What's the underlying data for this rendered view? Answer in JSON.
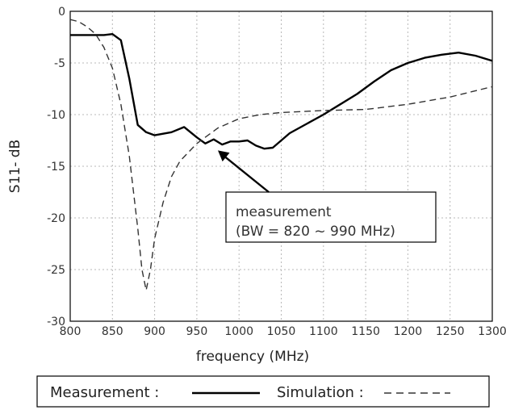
{
  "chart_data": {
    "type": "line",
    "title": "",
    "xlabel": "frequency (MHz)",
    "ylabel": "S11- dB",
    "xlim": [
      800,
      1300
    ],
    "ylim": [
      -30,
      0
    ],
    "xticks": [
      800,
      850,
      900,
      950,
      1000,
      1050,
      1100,
      1150,
      1200,
      1250,
      1300
    ],
    "yticks": [
      0,
      -5,
      -10,
      -15,
      -20,
      -25,
      -30
    ],
    "grid": true,
    "legend": {
      "placement": "bottom",
      "entries": [
        {
          "label": "Measurement :",
          "style": "solid"
        },
        {
          "label": "Simulation :",
          "style": "dashed"
        }
      ]
    },
    "annotation": {
      "line1": "measurement",
      "line2": "(BW = 820 ~ 990 MHz)",
      "arrow_target": [
        975,
        -13
      ]
    },
    "series": [
      {
        "name": "Measurement",
        "style": "solid",
        "color": "#000000",
        "x": [
          800,
          820,
          840,
          850,
          860,
          870,
          880,
          890,
          900,
          920,
          935,
          950,
          960,
          970,
          980,
          990,
          1000,
          1010,
          1020,
          1030,
          1040,
          1060,
          1080,
          1100,
          1120,
          1140,
          1160,
          1180,
          1200,
          1220,
          1240,
          1260,
          1280,
          1300
        ],
        "values": [
          -2.3,
          -2.3,
          -2.3,
          -2.2,
          -2.8,
          -6.5,
          -11.0,
          -11.7,
          -12.0,
          -11.7,
          -11.2,
          -12.2,
          -12.8,
          -12.4,
          -12.9,
          -12.6,
          -12.6,
          -12.5,
          -13.0,
          -13.3,
          -13.2,
          -11.8,
          -10.9,
          -10.0,
          -9.0,
          -8.0,
          -6.8,
          -5.7,
          -5.0,
          -4.5,
          -4.2,
          -4.0,
          -4.3,
          -4.8
        ]
      },
      {
        "name": "Simulation",
        "style": "dashed",
        "color": "#333333",
        "x": [
          800,
          810,
          820,
          830,
          840,
          850,
          860,
          870,
          880,
          885,
          890,
          895,
          900,
          910,
          920,
          930,
          950,
          975,
          1000,
          1025,
          1050,
          1100,
          1150,
          1200,
          1250,
          1300
        ],
        "values": [
          -0.8,
          -1.0,
          -1.5,
          -2.2,
          -3.5,
          -5.5,
          -9.0,
          -14.0,
          -21.0,
          -25.0,
          -27.0,
          -25.0,
          -22.0,
          -18.5,
          -16.0,
          -14.5,
          -12.8,
          -11.3,
          -10.4,
          -10.0,
          -9.8,
          -9.6,
          -9.5,
          -9.0,
          -8.3,
          -7.3
        ]
      }
    ]
  },
  "colors": {
    "grid": "#b8b8b8",
    "axes": "#000000",
    "measurement": "#000000",
    "simulation": "#333333"
  }
}
